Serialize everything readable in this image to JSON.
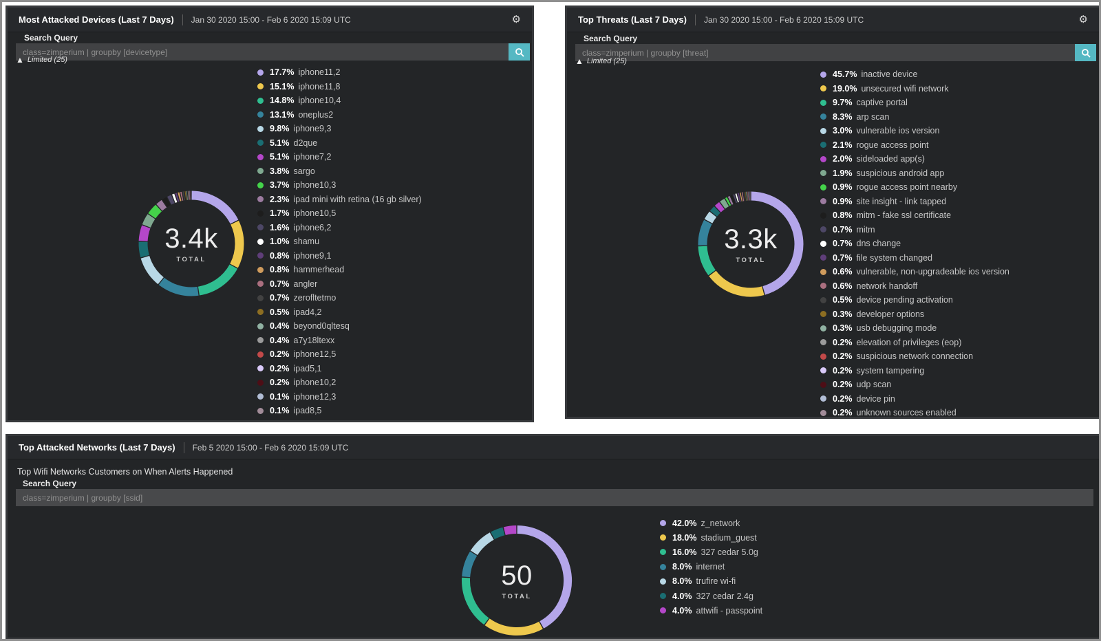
{
  "palette": [
    "#b4a6ea",
    "#eec84d",
    "#2fbe90",
    "#35839c",
    "#b8d8e6",
    "#1a6e73",
    "#b447c9",
    "#7fa990",
    "#44d24a",
    "#9c7ba0",
    "#1d1d1d",
    "#4d4766",
    "#ffffff",
    "#5f3e79",
    "#d09c5d",
    "#aa6f7f",
    "#424242",
    "#8d6e22",
    "#90b1a2",
    "#9b9b9b",
    "#c24949",
    "#d9c9f9",
    "#4d0e16",
    "#b1bdd5",
    "#a28c99"
  ],
  "colors": {
    "accent_teal": "#55b8c3",
    "card_bg": "#232527",
    "page_bg": "#ffffff"
  },
  "ui": {
    "search_query_label": "Search Query",
    "limited_text": "Limited (25)",
    "total_label": "TOTAL"
  },
  "panels": [
    {
      "title": "Most Attacked Devices (Last 7 Days)",
      "date_range": "Jan 30 2020 15:00 - Feb 6 2020 15:09 UTC",
      "query": "class=zimperium | groupby [devicetype]",
      "total": "3.4k"
    },
    {
      "title": "Top Threats (Last 7 Days)",
      "date_range": "Jan 30 2020 15:00 - Feb 6 2020 15:09 UTC",
      "query": "class=zimperium | groupby [threat]",
      "total": "3.3k"
    },
    {
      "title": "Top Attacked Networks (Last 7 Days)",
      "date_range": "Feb 5 2020 15:00 - Feb 6 2020 15:09 UTC",
      "subtitle": "Top Wifi Networks Customers on When Alerts Happened",
      "query": "class=zimperium | groupby [ssid]",
      "total": "50"
    }
  ],
  "chart_data": [
    {
      "type": "pie",
      "title": "Most Attacked Devices (Last 7 Days)",
      "center_total": "3.4k",
      "legend_position": "right",
      "categories": [
        "iphone11,2",
        "iphone11,8",
        "iphone10,4",
        "oneplus2",
        "iphone9,3",
        "d2que",
        "iphone7,2",
        "sargo",
        "iphone10,3",
        "ipad mini with retina (16 gb silver)",
        "iphone10,5",
        "iphone6,2",
        "shamu",
        "iphone9,1",
        "hammerhead",
        "angler",
        "zerofltetmo",
        "ipad4,2",
        "beyond0qltesq",
        "a7y18ltexx",
        "iphone12,5",
        "ipad5,1",
        "iphone10,2",
        "iphone12,3",
        "ipad8,5"
      ],
      "values": [
        17.7,
        15.1,
        14.8,
        13.1,
        9.8,
        5.1,
        5.1,
        3.8,
        3.7,
        2.3,
        1.7,
        1.6,
        1.0,
        0.8,
        0.8,
        0.7,
        0.7,
        0.5,
        0.4,
        0.4,
        0.2,
        0.2,
        0.2,
        0.1,
        0.1
      ]
    },
    {
      "type": "pie",
      "title": "Top Threats (Last 7 Days)",
      "center_total": "3.3k",
      "legend_position": "right",
      "categories": [
        "inactive device",
        "unsecured wifi network",
        "captive portal",
        "arp scan",
        "vulnerable ios version",
        "rogue access point",
        "sideloaded app(s)",
        "suspicious android app",
        "rogue access point nearby",
        "site insight - link tapped",
        "mitm - fake ssl certificate",
        "mitm",
        "dns change",
        "file system changed",
        "vulnerable, non-upgradeable ios version",
        "network handoff",
        "device pending activation",
        "developer options",
        "usb debugging mode",
        "elevation of privileges (eop)",
        "suspicious network connection",
        "system tampering",
        "udp scan",
        "device pin",
        "unknown sources enabled"
      ],
      "values": [
        45.7,
        19.0,
        9.7,
        8.3,
        3.0,
        2.1,
        2.0,
        1.9,
        0.9,
        0.9,
        0.8,
        0.7,
        0.7,
        0.7,
        0.6,
        0.6,
        0.5,
        0.3,
        0.3,
        0.2,
        0.2,
        0.2,
        0.2,
        0.2,
        0.2
      ]
    },
    {
      "type": "pie",
      "title": "Top Attacked Networks (Last 7 Days)",
      "center_total": "50",
      "legend_position": "right",
      "categories": [
        "z_network",
        "stadium_guest",
        "327 cedar 5.0g",
        "internet",
        "trufire wi-fi",
        "327 cedar 2.4g",
        "attwifi - passpoint"
      ],
      "values": [
        42.0,
        18.0,
        16.0,
        8.0,
        8.0,
        4.0,
        4.0
      ]
    }
  ]
}
